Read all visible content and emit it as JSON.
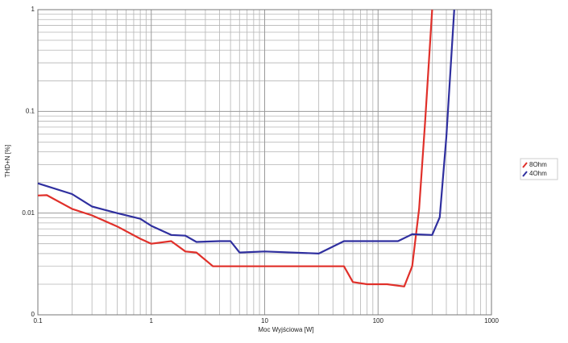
{
  "chart_data": {
    "type": "line",
    "xlabel": "Moc Wyjściowa [W]",
    "ylabel": "THD+N [%]",
    "xscale": "log",
    "yscale": "log",
    "grid": true,
    "legend": "right",
    "xlim": [
      0.1,
      1000
    ],
    "xticks": [
      0.1,
      1,
      10,
      100,
      1000
    ],
    "ylim": [
      0.001,
      1
    ],
    "yticks": [
      {
        "value": 0.001,
        "label": "0"
      },
      0.01,
      0.1,
      1
    ],
    "series": [
      {
        "name": "8Ohm",
        "color": "#e0302a",
        "x": [
          0.1,
          0.12,
          0.2,
          0.3,
          0.5,
          0.8,
          1,
          1.5,
          2,
          2.5,
          3.5,
          5,
          10,
          20,
          40,
          50,
          60,
          80,
          120,
          170,
          200,
          230,
          260,
          300
        ],
        "values": [
          0.0149,
          0.015,
          0.011,
          0.0095,
          0.0074,
          0.0056,
          0.005,
          0.0053,
          0.0042,
          0.0041,
          0.003,
          0.003,
          0.003,
          0.003,
          0.003,
          0.003,
          0.0021,
          0.002,
          0.002,
          0.0019,
          0.003,
          0.011,
          0.08,
          1
        ]
      },
      {
        "name": "4Ohm",
        "color": "#2f2f9f",
        "x": [
          0.1,
          0.2,
          0.3,
          0.5,
          0.8,
          1,
          1.5,
          2,
          2.5,
          4,
          5,
          6,
          10,
          30,
          50,
          100,
          150,
          200,
          300,
          350,
          400,
          470
        ],
        "values": [
          0.0196,
          0.0154,
          0.0116,
          0.01,
          0.0088,
          0.0075,
          0.0061,
          0.006,
          0.0052,
          0.0053,
          0.0053,
          0.0041,
          0.0042,
          0.004,
          0.0053,
          0.0053,
          0.0053,
          0.0062,
          0.0061,
          0.0091,
          0.056,
          1
        ]
      }
    ]
  }
}
